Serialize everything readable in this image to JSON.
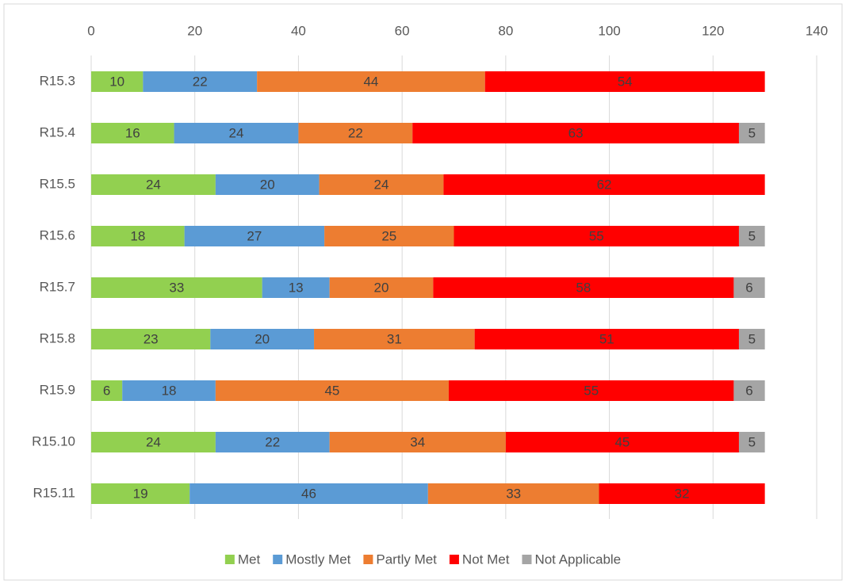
{
  "chart_data": {
    "type": "stacked-bar-horizontal",
    "categories": [
      "R15.3",
      "R15.4",
      "R15.5",
      "R15.6",
      "R15.7",
      "R15.8",
      "R15.9",
      "R15.10",
      "R15.11"
    ],
    "series": [
      {
        "name": "Met",
        "color": "#92d050",
        "values": [
          10,
          16,
          24,
          18,
          33,
          23,
          6,
          24,
          19
        ]
      },
      {
        "name": "Mostly Met",
        "color": "#5b9bd5",
        "values": [
          22,
          24,
          20,
          27,
          13,
          20,
          18,
          22,
          46
        ]
      },
      {
        "name": "Partly Met",
        "color": "#ed7d31",
        "values": [
          44,
          22,
          24,
          25,
          20,
          31,
          45,
          34,
          33
        ]
      },
      {
        "name": "Not Met",
        "color": "#ff0000",
        "values": [
          54,
          63,
          62,
          55,
          58,
          51,
          55,
          45,
          32
        ]
      },
      {
        "name": "Not Applicable",
        "color": "#a5a5a5",
        "values": [
          null,
          5,
          null,
          5,
          6,
          5,
          6,
          5,
          null
        ]
      }
    ],
    "xlim": [
      0,
      140
    ],
    "xticks": [
      0,
      20,
      40,
      60,
      80,
      100,
      120,
      140
    ],
    "grid": true,
    "legend": "bottom"
  }
}
